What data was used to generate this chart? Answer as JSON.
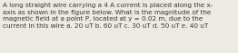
{
  "text": "A long straight wire carrying a 4 A current is placed along the x-\naxis as shown in the figure below. What is the magnitude of the\nmagnetic field at a point P, located at y = 0.02 m, due to the\ncurrent in this wire a. 20 uT b. 60 uT c. 30 uT d. 50 uT e. 40 uT",
  "font_size": 5.2,
  "bg_color": "#ede9e3",
  "text_color": "#3a3530",
  "figwidth": 2.62,
  "figheight": 0.59,
  "dpi": 100
}
